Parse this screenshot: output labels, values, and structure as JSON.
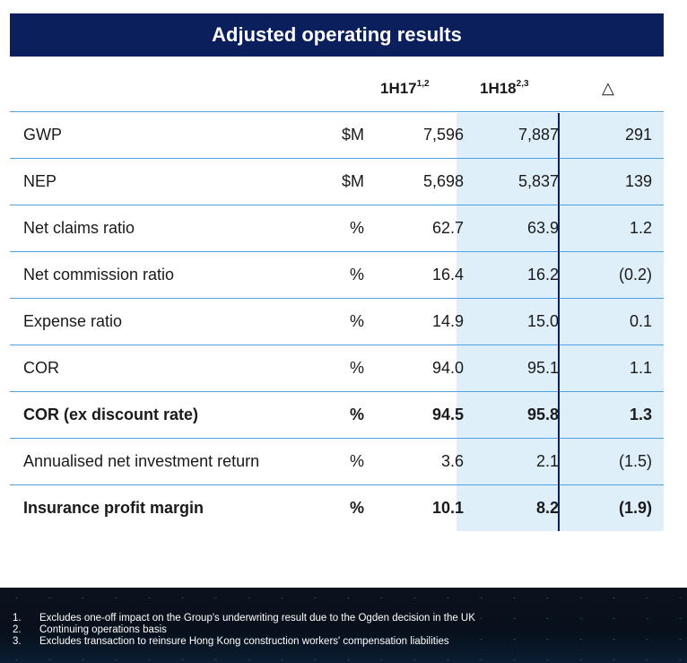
{
  "title": "Adjusted operating results",
  "headers": {
    "col_a": "1H17",
    "col_a_sup": "1,2",
    "col_b": "1H18",
    "col_b_sup": "2,3",
    "delta": "△"
  },
  "rows": [
    {
      "label": "GWP",
      "unit": "$M",
      "a": "7,596",
      "b": "7,887",
      "delta": "291",
      "bold": false
    },
    {
      "label": "NEP",
      "unit": "$M",
      "a": "5,698",
      "b": "5,837",
      "delta": "139",
      "bold": false
    },
    {
      "label": "Net claims ratio",
      "unit": "%",
      "a": "62.7",
      "b": "63.9",
      "delta": "1.2",
      "bold": false
    },
    {
      "label": "Net commission ratio",
      "unit": "%",
      "a": "16.4",
      "b": "16.2",
      "delta": "(0.2)",
      "bold": false
    },
    {
      "label": "Expense ratio",
      "unit": "%",
      "a": "14.9",
      "b": "15.0",
      "delta": "0.1",
      "bold": false
    },
    {
      "label": "COR",
      "unit": "%",
      "a": "94.0",
      "b": "95.1",
      "delta": "1.1",
      "bold": false
    },
    {
      "label": "COR (ex discount rate)",
      "unit": "%",
      "a": "94.5",
      "b": "95.8",
      "delta": "1.3",
      "bold": true
    },
    {
      "label": "Annualised net investment return",
      "unit": "%",
      "a": "3.6",
      "b": "2.1",
      "delta": "(1.5)",
      "bold": false
    },
    {
      "label": "Insurance profit margin",
      "unit": "%",
      "a": "10.1",
      "b": "8.2",
      "delta": "(1.9)",
      "bold": true
    }
  ],
  "footnotes": [
    {
      "num": "1.",
      "text": "Excludes one-off impact on the Group's underwriting result due to the Ogden decision in the UK"
    },
    {
      "num": "2.",
      "text": "Continuing operations basis"
    },
    {
      "num": "3.",
      "text": "Excludes transaction to reinsure Hong Kong construction workers' compensation liabilities"
    }
  ],
  "colors": {
    "title_bg": "#0b1f5c",
    "shade": "#deeffa",
    "rule": "#4aa3df"
  }
}
